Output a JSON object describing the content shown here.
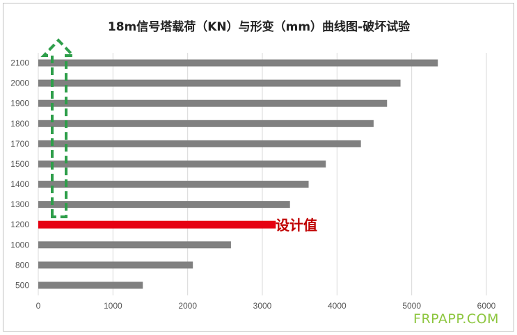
{
  "colors": {
    "bar": "#808080",
    "design_bar": "#e60012",
    "design_label": "#c00000",
    "arrow": "#2e9e4a",
    "grid": "#d9d9d9",
    "watermark": "#8dc63f"
  },
  "watermark": "FRPAPP.COM",
  "chart_data": {
    "type": "bar",
    "orientation": "horizontal",
    "title": "18m信号塔载荷（KN）与形变（mm）曲线图-破坏试验",
    "xlabel": "",
    "ylabel": "",
    "xlim": [
      0,
      6000
    ],
    "x_ticks": [
      "0",
      "1000",
      "2000",
      "3000",
      "4000",
      "5000",
      "6000"
    ],
    "grid": "vertical",
    "categories": [
      "2100",
      "2000",
      "1900",
      "1800",
      "1700",
      "1500",
      "1400",
      "1300",
      "1200",
      "1000",
      "800",
      "500"
    ],
    "values": [
      5350,
      4850,
      4670,
      4490,
      4320,
      3850,
      3620,
      3370,
      3180,
      2580,
      2070,
      1400
    ],
    "highlight": {
      "category": "1200",
      "label": "设计值"
    },
    "arrow": {
      "style": "dashed",
      "direction": "up"
    }
  }
}
